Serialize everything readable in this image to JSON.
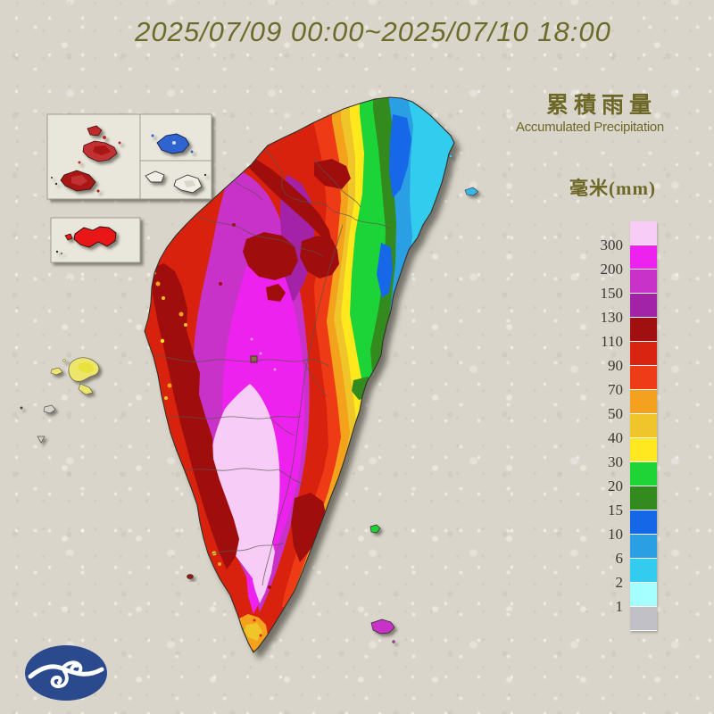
{
  "title": "2025/07/09 00:00~2025/07/10 18:00",
  "legend": {
    "title_zh": "累積雨量",
    "title_en": "Accumulated Precipitation",
    "unit_label": "毫米(mm)",
    "scale": [
      {
        "label": "",
        "color": "#F7CDF7"
      },
      {
        "label": "300",
        "color": "#EE22EE"
      },
      {
        "label": "200",
        "color": "#C832C8"
      },
      {
        "label": "150",
        "color": "#A323A8"
      },
      {
        "label": "130",
        "color": "#A01010"
      },
      {
        "label": "110",
        "color": "#D82410"
      },
      {
        "label": "90",
        "color": "#EE3B18"
      },
      {
        "label": "70",
        "color": "#F4A11F"
      },
      {
        "label": "50",
        "color": "#F0C52C"
      },
      {
        "label": "40",
        "color": "#FFE81F"
      },
      {
        "label": "30",
        "color": "#1ED437"
      },
      {
        "label": "20",
        "color": "#338B1F"
      },
      {
        "label": "15",
        "color": "#1667E8"
      },
      {
        "label": "10",
        "color": "#2B9FE4"
      },
      {
        "label": "6",
        "color": "#33CCEE"
      },
      {
        "label": "2",
        "color": "#A5FFFF"
      },
      {
        "label": "1",
        "color": "#C0C0C6"
      }
    ]
  },
  "colors": {
    "background": "#D9D5CA",
    "title_text": "#6B6B2C",
    "legend_text": "#6E6828",
    "scale_label_text": "#3B3733",
    "logo_blue": "#2B4A8E"
  }
}
